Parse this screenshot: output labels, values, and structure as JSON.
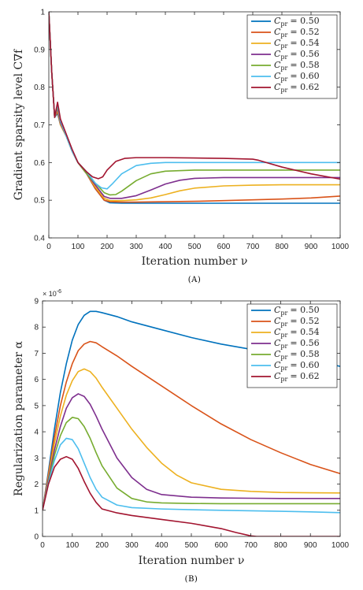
{
  "chart_data": [
    {
      "type": "line",
      "panel": "A",
      "caption": "(A)",
      "xlabel": "Iteration number ν",
      "ylabel": "Gradient sparsity level C∇f",
      "xlim": [
        0,
        1000
      ],
      "ylim": [
        0.4,
        1.0
      ],
      "x_ticks": [
        0,
        100,
        200,
        300,
        400,
        500,
        600,
        700,
        800,
        900,
        1000
      ],
      "y_ticks": [
        0.4,
        0.5,
        0.6,
        0.7,
        0.8,
        0.9,
        1.0
      ],
      "y_tick_labels": [
        "0.4",
        "0.5",
        "0.6",
        "0.7",
        "0.8",
        "0.9",
        "1"
      ],
      "grid": false,
      "legend_position": "top-right",
      "series": [
        {
          "name": "C_pr = 0.50",
          "legend": "= 0.50",
          "color": "#0072BD",
          "x": [
            0,
            10,
            20,
            30,
            40,
            60,
            80,
            100,
            130,
            160,
            190,
            210,
            250,
            300,
            400,
            500,
            600,
            700,
            800,
            900,
            1000
          ],
          "y": [
            1.0,
            0.84,
            0.72,
            0.73,
            0.7,
            0.67,
            0.63,
            0.6,
            0.57,
            0.53,
            0.5,
            0.493,
            0.492,
            0.492,
            0.492,
            0.492,
            0.492,
            0.492,
            0.492,
            0.492,
            0.492
          ]
        },
        {
          "name": "C_pr = 0.52",
          "legend": "= 0.52",
          "color": "#D95319",
          "x": [
            0,
            10,
            20,
            30,
            40,
            60,
            80,
            100,
            130,
            160,
            190,
            210,
            250,
            300,
            400,
            500,
            600,
            700,
            800,
            900,
            1000
          ],
          "y": [
            1.0,
            0.84,
            0.72,
            0.735,
            0.7,
            0.67,
            0.63,
            0.6,
            0.57,
            0.53,
            0.5,
            0.496,
            0.495,
            0.495,
            0.496,
            0.497,
            0.499,
            0.501,
            0.503,
            0.506,
            0.511
          ]
        },
        {
          "name": "C_pr = 0.54",
          "legend": "= 0.54",
          "color": "#EDB120",
          "x": [
            0,
            10,
            20,
            30,
            40,
            60,
            80,
            100,
            130,
            160,
            190,
            210,
            250,
            300,
            350,
            400,
            450,
            500,
            600,
            700,
            800,
            900,
            1000
          ],
          "y": [
            1.0,
            0.84,
            0.72,
            0.74,
            0.7,
            0.67,
            0.63,
            0.6,
            0.57,
            0.535,
            0.505,
            0.499,
            0.499,
            0.501,
            0.506,
            0.515,
            0.525,
            0.532,
            0.538,
            0.54,
            0.541,
            0.541,
            0.541
          ]
        },
        {
          "name": "C_pr = 0.56",
          "legend": "= 0.56",
          "color": "#7E2F8E",
          "x": [
            0,
            10,
            20,
            30,
            40,
            60,
            80,
            100,
            130,
            160,
            190,
            210,
            250,
            300,
            350,
            400,
            450,
            500,
            600,
            700,
            800,
            900,
            1000
          ],
          "y": [
            1.0,
            0.84,
            0.72,
            0.745,
            0.705,
            0.67,
            0.63,
            0.6,
            0.57,
            0.54,
            0.51,
            0.505,
            0.505,
            0.512,
            0.527,
            0.543,
            0.553,
            0.558,
            0.56,
            0.56,
            0.56,
            0.56,
            0.56
          ]
        },
        {
          "name": "C_pr = 0.58",
          "legend": "= 0.58",
          "color": "#77AC30",
          "x": [
            0,
            10,
            20,
            30,
            40,
            60,
            80,
            100,
            130,
            160,
            190,
            210,
            230,
            250,
            300,
            350,
            400,
            500,
            600,
            700,
            800,
            900,
            1000
          ],
          "y": [
            1.0,
            0.84,
            0.72,
            0.75,
            0.71,
            0.67,
            0.63,
            0.6,
            0.57,
            0.545,
            0.52,
            0.514,
            0.515,
            0.524,
            0.552,
            0.57,
            0.577,
            0.58,
            0.58,
            0.58,
            0.58,
            0.58,
            0.58
          ]
        },
        {
          "name": "C_pr = 0.60",
          "legend": "= 0.60",
          "color": "#4DBEEE",
          "x": [
            0,
            10,
            20,
            30,
            40,
            60,
            80,
            100,
            130,
            160,
            180,
            200,
            220,
            250,
            300,
            350,
            400,
            500,
            600,
            700,
            800,
            900,
            1000
          ],
          "y": [
            1.0,
            0.84,
            0.72,
            0.755,
            0.71,
            0.67,
            0.63,
            0.6,
            0.575,
            0.545,
            0.533,
            0.53,
            0.545,
            0.57,
            0.592,
            0.598,
            0.6,
            0.6,
            0.6,
            0.6,
            0.6,
            0.6,
            0.6
          ]
        },
        {
          "name": "C_pr = 0.62",
          "legend": "= 0.62",
          "color": "#A2142F",
          "x": [
            0,
            10,
            20,
            30,
            40,
            60,
            80,
            100,
            130,
            150,
            170,
            185,
            200,
            230,
            260,
            300,
            400,
            500,
            600,
            700,
            720,
            800,
            900,
            1000
          ],
          "y": [
            1.0,
            0.84,
            0.72,
            0.76,
            0.715,
            0.675,
            0.635,
            0.6,
            0.575,
            0.562,
            0.557,
            0.562,
            0.58,
            0.603,
            0.611,
            0.613,
            0.613,
            0.612,
            0.611,
            0.609,
            0.606,
            0.588,
            0.57,
            0.556
          ]
        }
      ]
    },
    {
      "type": "line",
      "panel": "B",
      "caption": "(B)",
      "xlabel": "Iteration number ν",
      "ylabel": "Regularization parameter α",
      "y_exponent": "× 10",
      "y_exponent_power": "-6",
      "xlim": [
        0,
        1000
      ],
      "ylim": [
        0,
        9
      ],
      "x_ticks": [
        0,
        100,
        200,
        300,
        400,
        500,
        600,
        700,
        800,
        900,
        1000
      ],
      "y_ticks": [
        0,
        1,
        2,
        3,
        4,
        5,
        6,
        7,
        8,
        9
      ],
      "grid": false,
      "legend_position": "top-right",
      "series": [
        {
          "name": "C_pr = 0.50",
          "legend": "= 0.50",
          "color": "#0072BD",
          "x": [
            0,
            20,
            40,
            60,
            80,
            100,
            120,
            140,
            160,
            180,
            200,
            250,
            300,
            400,
            500,
            600,
            700,
            800,
            900,
            1000
          ],
          "y": [
            1.0,
            2.5,
            4.1,
            5.5,
            6.6,
            7.5,
            8.1,
            8.45,
            8.6,
            8.6,
            8.55,
            8.4,
            8.2,
            7.9,
            7.6,
            7.35,
            7.15,
            6.95,
            6.75,
            6.5
          ]
        },
        {
          "name": "C_pr = 0.52",
          "legend": "= 0.52",
          "color": "#D95319",
          "x": [
            0,
            20,
            40,
            60,
            80,
            100,
            120,
            140,
            160,
            180,
            200,
            250,
            300,
            400,
            500,
            600,
            700,
            800,
            900,
            1000
          ],
          "y": [
            1.0,
            2.4,
            3.8,
            5.0,
            5.9,
            6.6,
            7.1,
            7.35,
            7.45,
            7.4,
            7.25,
            6.9,
            6.5,
            5.75,
            5.0,
            4.3,
            3.7,
            3.2,
            2.75,
            2.4
          ]
        },
        {
          "name": "C_pr = 0.54",
          "legend": "= 0.54",
          "color": "#EDB120",
          "x": [
            0,
            20,
            40,
            60,
            80,
            100,
            120,
            140,
            160,
            180,
            200,
            250,
            300,
            350,
            400,
            450,
            500,
            600,
            700,
            800,
            900,
            1000
          ],
          "y": [
            1.0,
            2.3,
            3.55,
            4.6,
            5.4,
            5.95,
            6.3,
            6.4,
            6.3,
            6.05,
            5.7,
            4.9,
            4.1,
            3.4,
            2.8,
            2.35,
            2.05,
            1.8,
            1.72,
            1.68,
            1.67,
            1.66
          ]
        },
        {
          "name": "C_pr = 0.56",
          "legend": "= 0.56",
          "color": "#7E2F8E",
          "x": [
            0,
            20,
            40,
            60,
            80,
            100,
            120,
            140,
            160,
            180,
            200,
            250,
            300,
            350,
            400,
            500,
            600,
            700,
            800,
            900,
            1000
          ],
          "y": [
            1.0,
            2.2,
            3.3,
            4.2,
            4.9,
            5.3,
            5.45,
            5.35,
            5.05,
            4.6,
            4.1,
            3.0,
            2.25,
            1.8,
            1.6,
            1.5,
            1.47,
            1.46,
            1.45,
            1.45,
            1.45
          ]
        },
        {
          "name": "C_pr = 0.58",
          "legend": "= 0.58",
          "color": "#77AC30",
          "x": [
            0,
            20,
            40,
            60,
            80,
            100,
            120,
            140,
            160,
            180,
            200,
            250,
            300,
            350,
            400,
            500,
            600,
            700,
            800,
            900,
            1000
          ],
          "y": [
            1.0,
            2.1,
            3.1,
            3.85,
            4.35,
            4.55,
            4.5,
            4.2,
            3.75,
            3.2,
            2.7,
            1.85,
            1.45,
            1.32,
            1.28,
            1.26,
            1.25,
            1.25,
            1.25,
            1.25,
            1.25
          ]
        },
        {
          "name": "C_pr = 0.60",
          "legend": "= 0.60",
          "color": "#4DBEEE",
          "x": [
            0,
            20,
            40,
            60,
            80,
            100,
            120,
            140,
            160,
            180,
            200,
            250,
            300,
            400,
            500,
            600,
            700,
            800,
            900,
            1000
          ],
          "y": [
            1.0,
            2.05,
            2.9,
            3.5,
            3.75,
            3.7,
            3.35,
            2.8,
            2.25,
            1.8,
            1.5,
            1.2,
            1.1,
            1.05,
            1.02,
            1.0,
            0.98,
            0.96,
            0.94,
            0.91
          ]
        },
        {
          "name": "C_pr = 0.62",
          "legend": "= 0.62",
          "color": "#A2142F",
          "x": [
            0,
            20,
            40,
            60,
            80,
            100,
            120,
            140,
            160,
            180,
            200,
            250,
            300,
            400,
            500,
            600,
            650,
            700,
            720,
            800,
            900,
            1000
          ],
          "y": [
            1.0,
            2.0,
            2.65,
            2.95,
            3.05,
            2.95,
            2.6,
            2.1,
            1.65,
            1.3,
            1.05,
            0.9,
            0.8,
            0.65,
            0.5,
            0.3,
            0.15,
            0.02,
            0.0,
            0.0,
            0.0,
            0.0
          ]
        }
      ]
    }
  ]
}
